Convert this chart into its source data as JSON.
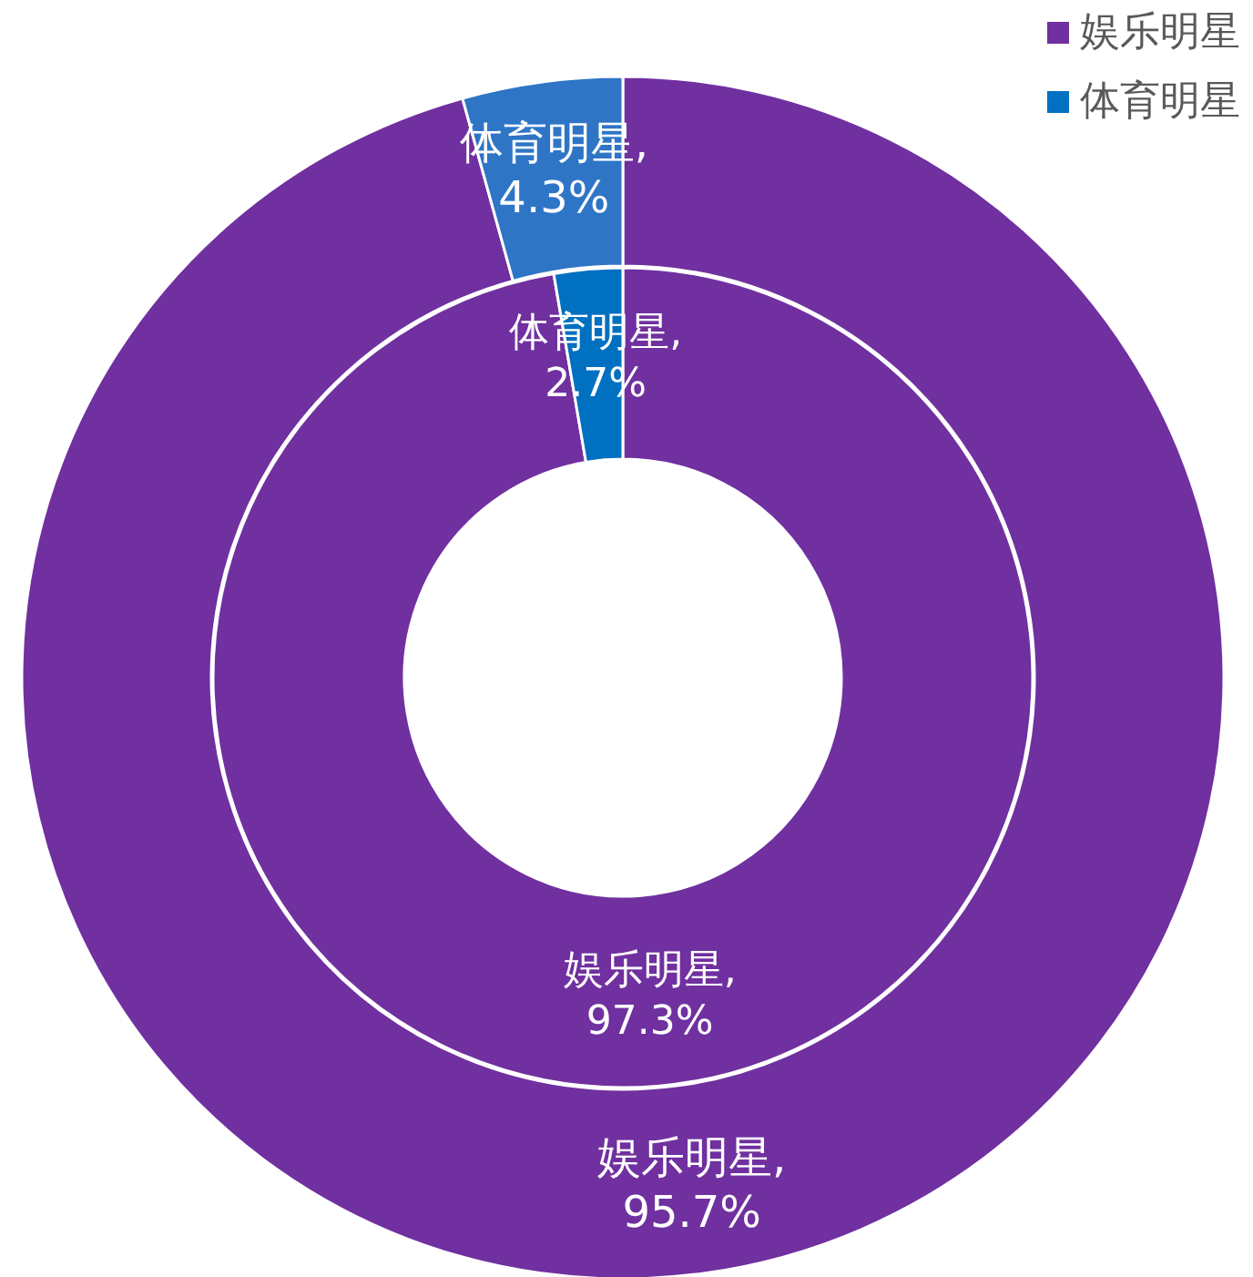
{
  "chart_data": {
    "type": "donut",
    "categories": [
      "娱乐明星",
      "体育明星"
    ],
    "series": [
      {
        "values": [
          97.3,
          2.7
        ],
        "colors": [
          "#7030a0",
          "#0070c0"
        ],
        "value_labels": [
          "娱乐明星,\n97.3%",
          "体育明星,\n2.7%"
        ]
      },
      {
        "values": [
          95.7,
          4.3
        ],
        "colors": [
          "#7030a0",
          "#2e75c6"
        ],
        "value_labels": [
          "娱乐明星,\n95.7%",
          "体育明星,\n4.3%"
        ]
      }
    ],
    "legend": "top right"
  }
}
